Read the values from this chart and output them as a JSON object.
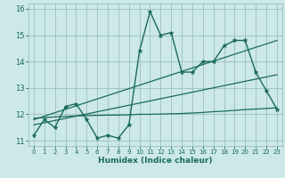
{
  "xlabel": "Humidex (Indice chaleur)",
  "xlim": [
    -0.5,
    23.5
  ],
  "ylim": [
    10.8,
    16.2
  ],
  "yticks": [
    11,
    12,
    13,
    14,
    15,
    16
  ],
  "xticks": [
    0,
    1,
    2,
    3,
    4,
    5,
    6,
    7,
    8,
    9,
    10,
    11,
    12,
    13,
    14,
    15,
    16,
    17,
    18,
    19,
    20,
    21,
    22,
    23
  ],
  "bg_color": "#cce8e8",
  "grid_color": "#9bbfbf",
  "line_color": "#1a6b5a",
  "main_line_x": [
    0,
    1,
    2,
    3,
    4,
    5,
    6,
    7,
    8,
    9,
    10,
    11,
    12,
    13,
    14,
    15,
    16,
    17,
    18,
    19,
    20,
    21,
    22,
    23
  ],
  "main_line_y": [
    11.2,
    11.8,
    11.5,
    12.3,
    12.4,
    11.8,
    11.1,
    11.2,
    11.1,
    11.6,
    14.4,
    15.9,
    15.0,
    15.1,
    13.6,
    13.6,
    14.0,
    14.0,
    14.6,
    14.8,
    14.8,
    13.6,
    12.9,
    12.2
  ],
  "flat_line_x": [
    0,
    1,
    2,
    3,
    4,
    5,
    6,
    7,
    8,
    9,
    10,
    11,
    12,
    13,
    14,
    15,
    16,
    17,
    18,
    19,
    20,
    21,
    22,
    23
  ],
  "flat_line_y": [
    11.85,
    11.88,
    11.9,
    11.92,
    11.94,
    11.95,
    11.96,
    11.97,
    11.97,
    11.98,
    12.0,
    12.0,
    12.01,
    12.02,
    12.03,
    12.05,
    12.07,
    12.1,
    12.12,
    12.15,
    12.18,
    12.2,
    12.22,
    12.25
  ],
  "reg_line1_x": [
    0,
    23
  ],
  "reg_line1_y": [
    11.6,
    13.5
  ],
  "reg_line2_x": [
    0,
    23
  ],
  "reg_line2_y": [
    11.8,
    14.8
  ]
}
